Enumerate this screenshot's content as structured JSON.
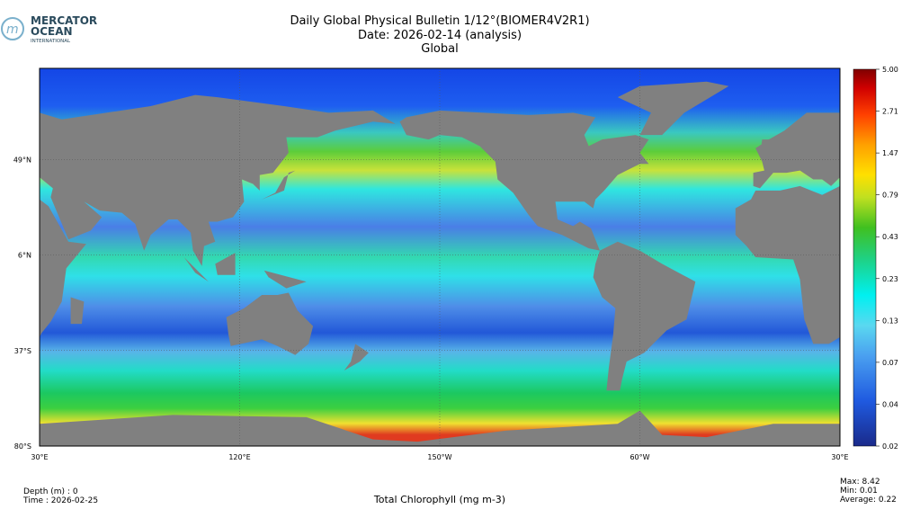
{
  "header": {
    "logo": [
      "MERCATOR",
      "OCEAN",
      "INTERNATIONAL"
    ],
    "title": "Daily Global Physical Bulletin 1/12°(BIOMER4V2R1)",
    "date": "Date: 2026-02-14 (analysis)",
    "region": "Global"
  },
  "map": {
    "lat_labels": [
      "49°N",
      "6°N",
      "37°S",
      "80°S"
    ],
    "lon_labels": [
      "30°E",
      "120°E",
      "150°W",
      "60°W",
      "30°E"
    ]
  },
  "colorbar": {
    "ticks": [
      "5.00",
      "2.71",
      "1.47",
      "0.79",
      "0.43",
      "0.23",
      "0.13",
      "0.07",
      "0.04",
      "0.02"
    ]
  },
  "footer": {
    "depth": "Depth (m) : 0",
    "time": "Time : 2026-02-25",
    "variable": "Total Chlorophyll (mg m-3)",
    "max": "Max:  8.42",
    "min": "Min:  0.01",
    "average": "Average:  0.22"
  }
}
